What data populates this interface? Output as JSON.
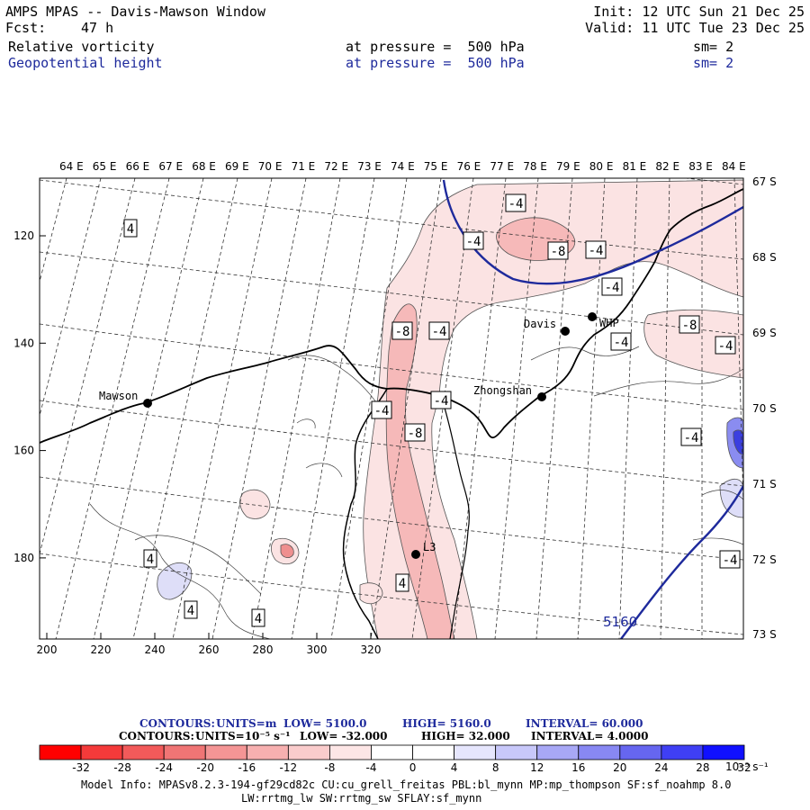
{
  "header": {
    "title": "AMPS MPAS -- Davis-Mawson Window",
    "init": "Init: 12 UTC Sun 21 Dec 25",
    "fcst_label": "Fcst:",
    "fcst_value": "47 h",
    "valid": "Valid: 11 UTC Tue 23 Dec 25",
    "field1": {
      "name": "Relative vorticity",
      "level": "at pressure =  500 hPa",
      "sm": "sm= 2"
    },
    "field2": {
      "name": "Geopotential height",
      "level": "at pressure =  500 hPa",
      "sm": "sm= 2"
    }
  },
  "map": {
    "lon_labels": [
      "64 E",
      "65 E",
      "66 E",
      "67 E",
      "68 E",
      "69 E",
      "70 E",
      "71 E",
      "72 E",
      "73 E",
      "74 E",
      "75 E",
      "76 E",
      "77 E",
      "78 E",
      "79 E",
      "80 E",
      "81 E",
      "82 E",
      "83 E",
      "84 E"
    ],
    "lat_labels": [
      "67 S",
      "68 S",
      "69 S",
      "70 S",
      "71 S",
      "72 S",
      "73 S"
    ],
    "x_ticks": [
      "200",
      "220",
      "240",
      "260",
      "280",
      "300",
      "320"
    ],
    "y_ticks": [
      "120",
      "140",
      "160",
      "180"
    ],
    "stations": [
      {
        "name": "Mawson"
      },
      {
        "name": "Davis"
      },
      {
        "name": "WHP"
      },
      {
        "name": "Zhongshan"
      },
      {
        "name": "L3"
      }
    ],
    "contour_labels": [
      "4",
      "-4",
      "-8",
      "5160"
    ],
    "colors": {
      "height": "#1e2a9c",
      "pos_vort": "#f08080",
      "neg_vort": "#8a8cf0",
      "coast": "#000000"
    }
  },
  "footer": {
    "contours1": {
      "label": "CONTOURS:",
      "units": "UNITS=m",
      "low": "LOW=  5100.0",
      "high": "HIGH=  5160.0",
      "interval": "INTERVAL=   60.000"
    },
    "contours2": {
      "label": "CONTOURS:",
      "units": "UNITS=10⁻⁵ s⁻¹",
      "low": "LOW=  -32.000",
      "high": "HIGH=  32.000",
      "interval": "INTERVAL=   4.0000"
    },
    "colorbar_ticks": [
      "-32",
      "-28",
      "-24",
      "-20",
      "-16",
      "-12",
      "-8",
      "-4",
      "0",
      "4",
      "8",
      "12",
      "16",
      "20",
      "24",
      "28",
      "32"
    ],
    "colorbar_unit": "10⁻⁵ s⁻¹",
    "colorbar_colors": [
      "#ff0000",
      "#f43a3a",
      "#f25a5a",
      "#f07575",
      "#f49595",
      "#f7b0b0",
      "#facccc",
      "#fde6e6",
      "#ffffff",
      "#ffffff",
      "#e6e6fd",
      "#c8c8fa",
      "#a8a8f6",
      "#8888f3",
      "#6666f0",
      "#3f3ff4",
      "#1010ff"
    ],
    "model_info": "Model Info: MPASv8.2.3-194-gf29cd82c CU:cu_grell_freitas PBL:bl_mynn MP:mp_thompson SF:sf_noahmp 8.0",
    "model_info2": "LW:rrtmg_lw SW:rrtmg_sw SFLAY:sf_mynn"
  }
}
